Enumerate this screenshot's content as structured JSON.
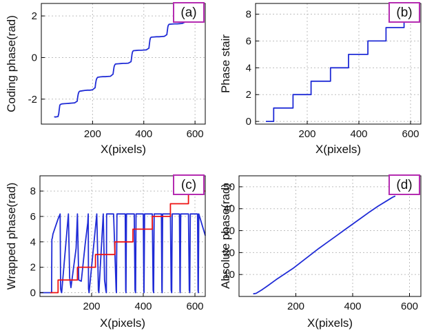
{
  "colors": {
    "series_blue": "#1f2bd6",
    "series_red": "#ee1111",
    "tag_border": "#b42bb0",
    "grid": "#bdbdbd",
    "axis": "#000000"
  },
  "chart_data": [
    {
      "panel": "(a)",
      "type": "line",
      "xlabel": "X(pixels)",
      "ylabel": "Coding phase(rad)",
      "xlim": [
        0,
        640
      ],
      "ylim": [
        -3.2,
        2.6
      ],
      "xticks": [
        200,
        400,
        600
      ],
      "yticks": [
        -2,
        0,
        2
      ],
      "xtick_labels": [
        "200",
        "400",
        "600"
      ],
      "ytick_labels": [
        "-2",
        "0",
        "2"
      ],
      "grid": true,
      "series": [
        {
          "color": "#1f2bd6",
          "x": [
            50,
            55,
            60,
            65,
            68,
            70,
            72,
            74,
            76,
            78,
            80,
            90,
            100,
            110,
            120,
            130,
            140,
            142,
            144,
            146,
            148,
            150,
            160,
            170,
            180,
            190,
            200,
            210,
            212,
            214,
            216,
            218,
            220,
            230,
            240,
            250,
            260,
            270,
            280,
            282,
            284,
            286,
            288,
            290,
            300,
            310,
            320,
            330,
            340,
            350,
            352,
            354,
            356,
            358,
            360,
            370,
            380,
            390,
            400,
            410,
            420,
            422,
            424,
            426,
            428,
            430,
            440,
            450,
            460,
            470,
            480,
            490,
            492,
            494,
            496,
            498,
            500,
            510,
            520,
            530,
            540,
            550,
            560,
            562,
            564,
            566,
            568,
            570,
            575,
            580
          ],
          "y": [
            -2.85,
            -2.86,
            -2.85,
            -2.84,
            -2.7,
            -2.5,
            -2.3,
            -2.26,
            -2.25,
            -2.24,
            -2.23,
            -2.22,
            -2.21,
            -2.2,
            -2.19,
            -2.18,
            -2.1,
            -1.9,
            -1.75,
            -1.68,
            -1.64,
            -1.62,
            -1.6,
            -1.58,
            -1.57,
            -1.57,
            -1.55,
            -1.45,
            -1.25,
            -1.1,
            -1.02,
            -0.98,
            -0.95,
            -0.93,
            -0.92,
            -0.92,
            -0.91,
            -0.9,
            -0.8,
            -0.6,
            -0.45,
            -0.37,
            -0.33,
            -0.31,
            -0.3,
            -0.29,
            -0.28,
            -0.28,
            -0.27,
            -0.2,
            -0.05,
            0.15,
            0.27,
            0.31,
            0.33,
            0.34,
            0.35,
            0.35,
            0.36,
            0.37,
            0.45,
            0.65,
            0.85,
            0.94,
            0.97,
            0.98,
            0.99,
            1.0,
            1.0,
            1.01,
            1.02,
            1.1,
            1.3,
            1.48,
            1.56,
            1.59,
            1.6,
            1.61,
            1.62,
            1.62,
            1.63,
            1.64,
            1.7,
            1.9,
            2.05,
            2.12,
            2.15,
            2.17,
            2.18,
            2.19
          ]
        }
      ]
    },
    {
      "panel": "(b)",
      "type": "line",
      "xlabel": "X(pixels)",
      "ylabel": "Phase stair",
      "xlim": [
        0,
        640
      ],
      "ylim": [
        -0.2,
        8.8
      ],
      "xticks": [
        200,
        400,
        600
      ],
      "yticks": [
        0,
        2,
        4,
        6,
        8
      ],
      "xtick_labels": [
        "200",
        "400",
        "600"
      ],
      "ytick_labels": [
        "0",
        "2",
        "4",
        "6",
        "8"
      ],
      "grid": true,
      "series": [
        {
          "color": "#1f2bd6",
          "x": [
            40,
            70,
            70,
            145,
            145,
            215,
            215,
            290,
            290,
            360,
            360,
            435,
            435,
            505,
            505,
            575,
            575
          ],
          "y": [
            0,
            0,
            1,
            1,
            2,
            2,
            3,
            3,
            4,
            4,
            5,
            5,
            6,
            6,
            7,
            7,
            7.6
          ]
        }
      ]
    },
    {
      "panel": "(c)",
      "type": "line",
      "xlabel": "X(pixels)",
      "ylabel": "Wrapped phase(rad)",
      "xlim": [
        0,
        640
      ],
      "ylim": [
        -0.3,
        9.2
      ],
      "xticks": [
        200,
        400,
        600
      ],
      "yticks": [
        0,
        2,
        4,
        6,
        8
      ],
      "xtick_labels": [
        "200",
        "400",
        "600"
      ],
      "ytick_labels": [
        "0",
        "2",
        "4",
        "6",
        "8"
      ],
      "grid": true,
      "series": [
        {
          "color": "#1f2bd6",
          "x": [
            0,
            45,
            46,
            48,
            50,
            60,
            70,
            78,
            80,
            82,
            84,
            110,
            115,
            120,
            140,
            145,
            150,
            160,
            175,
            185,
            187,
            188,
            190,
            220,
            225,
            226,
            228,
            245,
            250,
            255,
            257,
            258,
            285,
            292,
            295,
            296,
            298,
            330,
            332,
            333,
            335,
            365,
            368,
            370,
            372,
            400,
            402,
            403,
            405,
            435,
            438,
            440,
            442,
            470,
            472,
            473,
            475,
            505,
            508,
            510,
            512,
            540,
            542,
            543,
            545,
            575,
            578,
            580,
            582,
            610,
            612,
            613,
            615,
            640
          ],
          "y": [
            0,
            0,
            4.2,
            4.3,
            4.6,
            5.2,
            5.8,
            6.2,
            0.3,
            0.1,
            0,
            6.2,
            1.2,
            0.4,
            3.5,
            6.2,
            1.0,
            0.9,
            3.8,
            5.5,
            6.2,
            0.3,
            0,
            6.2,
            1.5,
            0.2,
            0,
            6.2,
            1.0,
            0.2,
            0,
            6.2,
            6.2,
            2.0,
            0.2,
            0,
            6.2,
            6.2,
            0.2,
            0,
            6.2,
            6.2,
            0.2,
            0,
            6.2,
            6.2,
            0.2,
            0,
            6.2,
            6.2,
            0.2,
            0,
            6.2,
            6.2,
            0.2,
            0,
            6.2,
            6.2,
            0.2,
            0,
            6.2,
            6.2,
            0.2,
            0,
            6.2,
            6.2,
            0.2,
            0,
            6.2,
            6.2,
            0.2,
            0,
            6.2,
            4.5
          ]
        },
        {
          "color": "#ee1111",
          "x": [
            40,
            70,
            70,
            145,
            145,
            215,
            215,
            290,
            290,
            360,
            360,
            435,
            435,
            505,
            505,
            575,
            575,
            640
          ],
          "y": [
            0,
            0,
            1,
            1,
            2,
            2,
            3,
            3,
            4,
            4,
            5,
            5,
            6,
            6,
            7,
            7,
            8,
            8
          ]
        }
      ]
    },
    {
      "panel": "(d)",
      "type": "line",
      "xlabel": "X(pixels)",
      "ylabel": "Absolute phase(rad)",
      "xlim": [
        0,
        640
      ],
      "ylim": [
        0,
        55
      ],
      "xticks": [
        200,
        400,
        600
      ],
      "yticks": [
        10,
        20,
        30,
        40,
        50
      ],
      "xtick_labels": [
        "200",
        "400",
        "600"
      ],
      "ytick_labels": [
        "10",
        "20",
        "30",
        "40",
        "50"
      ],
      "grid": true,
      "series": [
        {
          "color": "#1f2bd6",
          "x": [
            50,
            60,
            70,
            80,
            100,
            130,
            160,
            190,
            220,
            250,
            280,
            310,
            340,
            370,
            400,
            430,
            460,
            490,
            520,
            540,
            550
          ],
          "y": [
            1.2,
            1.4,
            2.2,
            3.0,
            4.8,
            7.6,
            10.2,
            12.8,
            15.8,
            18.8,
            21.8,
            24.6,
            27.4,
            30.2,
            33.0,
            35.8,
            38.6,
            41.2,
            43.6,
            45.2,
            45.8
          ]
        }
      ]
    }
  ]
}
